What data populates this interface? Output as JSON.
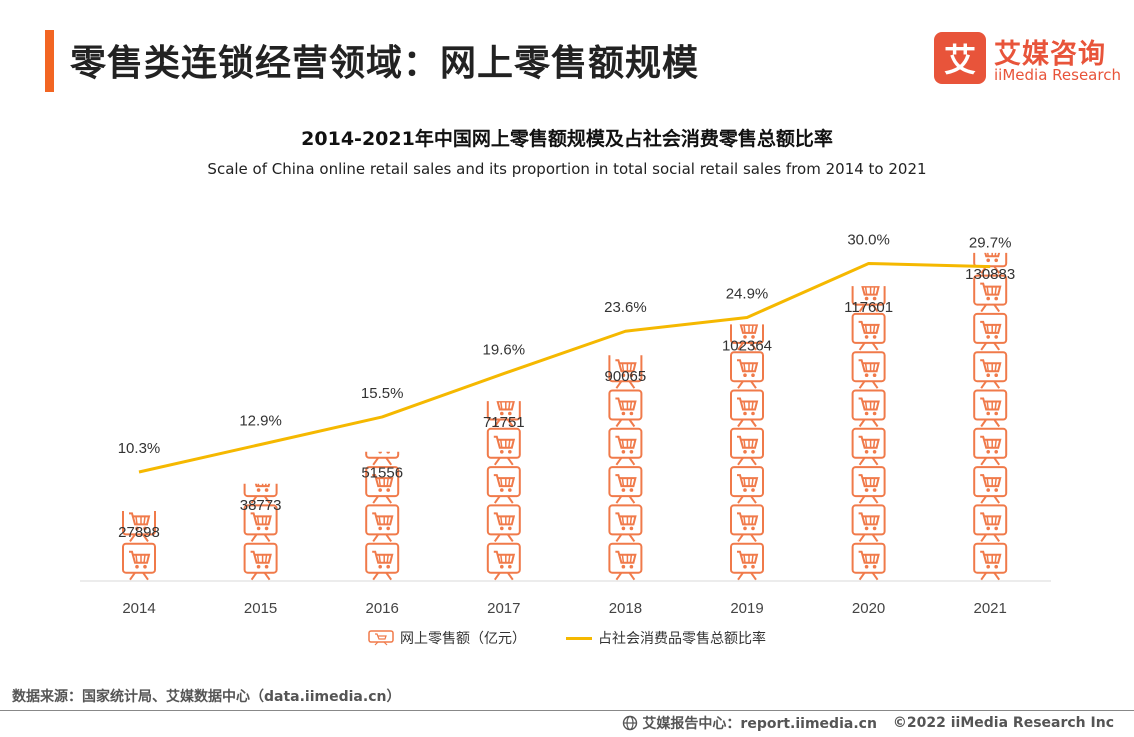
{
  "header": {
    "title": "零售类连锁经营领域：网上零售额规模",
    "logo_mark": "艾",
    "logo_cn": "艾媒咨询",
    "logo_en": "iiMedia Research"
  },
  "chart_data": {
    "type": "bar",
    "title": "2014-2021年中国网上零售额规模及占社会消费零售总额比率",
    "subtitle": "Scale of China online retail sales and its proportion in total social retail sales from 2014 to 2021",
    "categories": [
      "2014",
      "2015",
      "2016",
      "2017",
      "2018",
      "2019",
      "2020",
      "2021"
    ],
    "series": [
      {
        "name": "网上零售额（亿元）",
        "type": "pictorial-bar",
        "values": [
          27898,
          38773,
          51556,
          71751,
          90065,
          102364,
          117601,
          130883
        ],
        "labels": [
          "27898",
          "38773",
          "51556",
          "71751",
          "90065",
          "102364",
          "117601",
          "130883"
        ],
        "color": "#f07a4a"
      },
      {
        "name": "占社会消费品零售总额比率",
        "type": "line",
        "values": [
          10.3,
          12.9,
          15.5,
          19.6,
          23.6,
          24.9,
          30.0,
          29.7
        ],
        "labels": [
          "10.3%",
          "12.9%",
          "15.5%",
          "19.6%",
          "23.6%",
          "24.9%",
          "30.0%",
          "29.7%"
        ],
        "color": "#f5b800"
      }
    ],
    "ylim_left": [
      0,
      140000
    ],
    "ylim_right": [
      0,
      36
    ],
    "legend_position": "bottom"
  },
  "source_text": "数据来源：国家统计局、艾媒数据中心（data.iimedia.cn）",
  "footer": {
    "report": "艾媒报告中心：report.iimedia.cn",
    "copyright": "©2022 iiMedia Research Inc"
  }
}
